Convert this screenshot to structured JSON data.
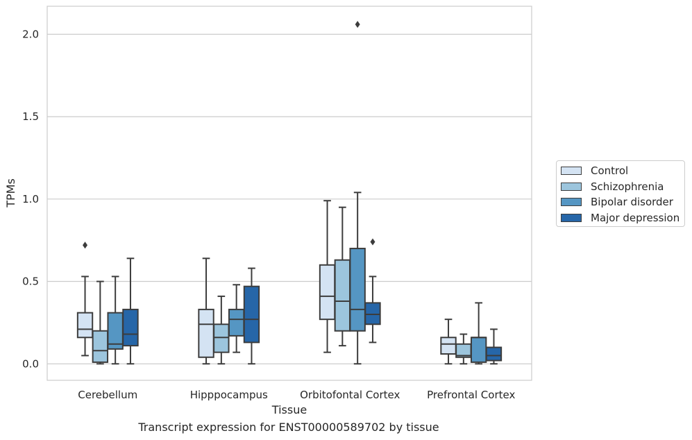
{
  "chart_data": {
    "type": "box",
    "caption": "Transcript expression for ENST00000589702 by tissue",
    "xlabel": "Tissue",
    "ylabel": "TPMs",
    "ylim": [
      -0.1,
      2.17
    ],
    "yticks": [
      "0.0",
      "0.5",
      "1.0",
      "1.5",
      "2.0"
    ],
    "grid": true,
    "legend_position": "right",
    "categories": [
      "Cerebellum",
      "Hipppocampus",
      "Orbitofontal Cortex",
      "Prefrontal Cortex"
    ],
    "series": [
      {
        "name": "Control",
        "color": "#d4e3f3",
        "boxes": [
          {
            "whislo": 0.05,
            "q1": 0.16,
            "med": 0.21,
            "q3": 0.31,
            "whishi": 0.53,
            "fliers": [
              0.72
            ]
          },
          {
            "whislo": 0.0,
            "q1": 0.04,
            "med": 0.24,
            "q3": 0.33,
            "whishi": 0.64,
            "fliers": []
          },
          {
            "whislo": 0.07,
            "q1": 0.27,
            "med": 0.41,
            "q3": 0.6,
            "whishi": 0.99,
            "fliers": []
          },
          {
            "whislo": 0.0,
            "q1": 0.06,
            "med": 0.12,
            "q3": 0.16,
            "whishi": 0.27,
            "fliers": []
          }
        ]
      },
      {
        "name": "Schizophrenia",
        "color": "#9cc5dd",
        "boxes": [
          {
            "whislo": 0.0,
            "q1": 0.01,
            "med": 0.08,
            "q3": 0.2,
            "whishi": 0.5,
            "fliers": []
          },
          {
            "whislo": 0.0,
            "q1": 0.07,
            "med": 0.16,
            "q3": 0.24,
            "whishi": 0.41,
            "fliers": []
          },
          {
            "whislo": 0.11,
            "q1": 0.2,
            "med": 0.38,
            "q3": 0.63,
            "whishi": 0.95,
            "fliers": []
          },
          {
            "whislo": 0.0,
            "q1": 0.04,
            "med": 0.05,
            "q3": 0.12,
            "whishi": 0.18,
            "fliers": []
          }
        ]
      },
      {
        "name": "Bipolar disorder",
        "color": "#5596c3",
        "boxes": [
          {
            "whislo": 0.0,
            "q1": 0.09,
            "med": 0.12,
            "q3": 0.31,
            "whishi": 0.53,
            "fliers": []
          },
          {
            "whislo": 0.07,
            "q1": 0.17,
            "med": 0.27,
            "q3": 0.33,
            "whishi": 0.48,
            "fliers": []
          },
          {
            "whislo": 0.0,
            "q1": 0.2,
            "med": 0.33,
            "q3": 0.7,
            "whishi": 1.04,
            "fliers": [
              2.06
            ]
          },
          {
            "whislo": 0.0,
            "q1": 0.01,
            "med": 0.16,
            "q3": 0.16,
            "whishi": 0.37,
            "fliers": []
          }
        ]
      },
      {
        "name": "Major depression",
        "color": "#2666a8",
        "boxes": [
          {
            "whislo": 0.0,
            "q1": 0.11,
            "med": 0.18,
            "q3": 0.33,
            "whishi": 0.64,
            "fliers": []
          },
          {
            "whislo": 0.0,
            "q1": 0.13,
            "med": 0.27,
            "q3": 0.47,
            "whishi": 0.58,
            "fliers": []
          },
          {
            "whislo": 0.13,
            "q1": 0.24,
            "med": 0.3,
            "q3": 0.37,
            "whishi": 0.53,
            "fliers": [
              0.74
            ]
          },
          {
            "whislo": 0.0,
            "q1": 0.02,
            "med": 0.05,
            "q3": 0.1,
            "whishi": 0.21,
            "fliers": []
          }
        ]
      }
    ]
  }
}
